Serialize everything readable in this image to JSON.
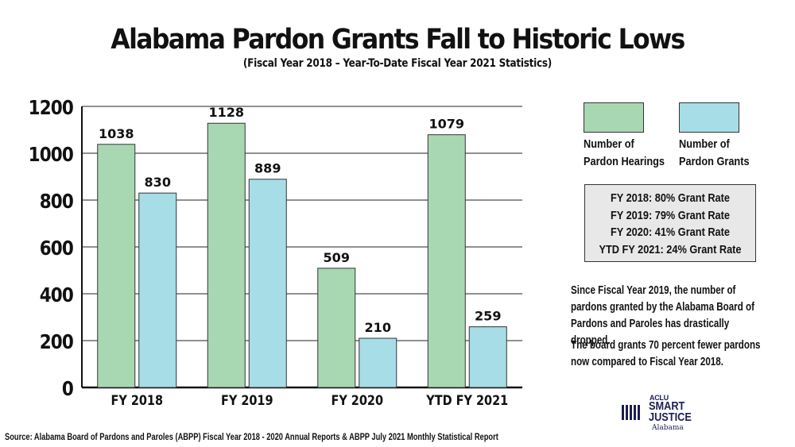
{
  "title": "Alabama Pardon Grants Fall to Historic Lows",
  "subtitle": "(Fiscal Year 2018 – Year-To-Date Fiscal Year 2021 Statistics)",
  "chart_data": {
    "type": "bar",
    "categories": [
      "FY 2018",
      "FY 2019",
      "FY 2020",
      "YTD FY 2021"
    ],
    "series": [
      {
        "name": "Number of Pardon Hearings",
        "color": "#a8d8b2",
        "values": [
          1038,
          1128,
          509,
          1079
        ]
      },
      {
        "name": "Number of Pardon Grants",
        "color": "#a6dde6",
        "values": [
          830,
          889,
          210,
          259
        ]
      }
    ],
    "yticks": [
      0,
      200,
      400,
      600,
      800,
      1000,
      1200
    ],
    "ylim": [
      0,
      1200
    ],
    "grid": true,
    "legend_position": "right",
    "title": "Alabama Pardon Grants Fall to Historic Lows",
    "subtitle": "(Fiscal Year 2018 – Year-To-Date Fiscal Year 2021 Statistics)"
  },
  "legend": {
    "hearings_line1": "Number of",
    "hearings_line2": "Pardon Hearings",
    "grants_line1": "Number of",
    "grants_line2": "Pardon Grants"
  },
  "grant_rates": [
    "FY 2018: 80% Grant Rate",
    "FY 2019: 79% Grant Rate",
    "FY 2020: 41% Grant Rate",
    "YTD FY 2021: 24% Grant Rate"
  ],
  "notes": {
    "paragraph1": "Since Fiscal Year 2019, the number of pardons granted by the Alabama Board of Pardons and Paroles has drastically dropped.",
    "paragraph2": "The board grants 70 percent fewer pardons now compared to Fiscal Year 2018."
  },
  "logo": {
    "org": "ACLU",
    "line1": "SMART",
    "line2": "JUSTICE",
    "state": "Alabama",
    "color": "#1c1d56"
  },
  "source": "Source: Alabama Board of Pardons and Paroles (ABPP) Fiscal Year 2018 - 2020 Annual Reports & ABPP July 2021 Monthly Statistical Report"
}
